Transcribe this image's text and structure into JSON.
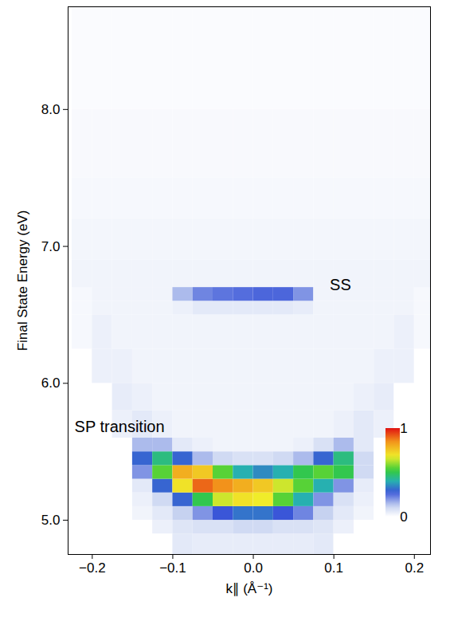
{
  "chart_data": {
    "type": "heatmap",
    "x_label": "k∥ (Å⁻¹)",
    "y_label": "Final State Energy (eV)",
    "xlim": [
      -0.23,
      0.22
    ],
    "ylim": [
      4.75,
      8.75
    ],
    "xticks": [
      {
        "value": -0.2,
        "label": "−0.2"
      },
      {
        "value": -0.1,
        "label": "−0.1"
      },
      {
        "value": 0,
        "label": "0.0"
      },
      {
        "value": 0.1,
        "label": "0.1"
      },
      {
        "value": 0.2,
        "label": "0.2"
      }
    ],
    "yticks": [
      {
        "value": 5,
        "label": "5.0"
      },
      {
        "value": 6,
        "label": "6.0"
      },
      {
        "value": 7,
        "label": "7.0"
      },
      {
        "value": 8,
        "label": "8.0"
      }
    ],
    "x_edges": [
      -0.225,
      -0.2,
      -0.175,
      -0.15,
      -0.125,
      -0.1,
      -0.075,
      -0.05,
      -0.025,
      0,
      0.025,
      0.05,
      0.075,
      0.1,
      0.125,
      0.15,
      0.175,
      0.2,
      0.225
    ],
    "y_edges": [
      4.75,
      4.9,
      5.0,
      5.1,
      5.2,
      5.3,
      5.4,
      5.5,
      5.6,
      5.8,
      6.0,
      6.25,
      6.5,
      6.6,
      6.7,
      6.9,
      7.2,
      7.5,
      8.0,
      8.75
    ],
    "values": [
      [
        0,
        0,
        0,
        0,
        0,
        0.06,
        0.05,
        0.05,
        0.05,
        0.05,
        0.05,
        0.05,
        0.06,
        0,
        0,
        0,
        0,
        0
      ],
      [
        0,
        0,
        0,
        0,
        0.04,
        0.07,
        0.08,
        0.08,
        0.1,
        0.1,
        0.08,
        0.08,
        0.07,
        0.04,
        0,
        0,
        0,
        0
      ],
      [
        0,
        0,
        0,
        0.03,
        0.06,
        0.12,
        0.2,
        0.28,
        0.32,
        0.32,
        0.28,
        0.22,
        0.12,
        0.06,
        0.03,
        0,
        0,
        0
      ],
      [
        0,
        0,
        0,
        0.04,
        0.1,
        0.3,
        0.5,
        0.65,
        0.7,
        0.68,
        0.55,
        0.4,
        0.2,
        0.08,
        0.04,
        0,
        0,
        0
      ],
      [
        0,
        0,
        0,
        0.06,
        0.3,
        0.7,
        0.9,
        0.85,
        0.8,
        0.75,
        0.65,
        0.55,
        0.4,
        0.2,
        0.05,
        0,
        0,
        0
      ],
      [
        0,
        0,
        0,
        0.2,
        0.55,
        0.8,
        0.75,
        0.55,
        0.4,
        0.35,
        0.4,
        0.5,
        0.55,
        0.5,
        0.1,
        0,
        0,
        0
      ],
      [
        0,
        0,
        0,
        0.3,
        0.45,
        0.3,
        0.15,
        0.1,
        0.08,
        0.08,
        0.1,
        0.15,
        0.3,
        0.45,
        0.1,
        0,
        0,
        0
      ],
      [
        0,
        0,
        0,
        0.15,
        0.15,
        0.06,
        0.04,
        0.03,
        0.03,
        0.03,
        0.03,
        0.04,
        0.08,
        0.15,
        0.06,
        0,
        0,
        0
      ],
      [
        0,
        0,
        0.04,
        0.06,
        0.04,
        0.03,
        0.03,
        0.03,
        0.03,
        0.03,
        0.03,
        0.03,
        0.03,
        0.04,
        0.06,
        0.04,
        0,
        0
      ],
      [
        0,
        0,
        0.05,
        0.04,
        0.03,
        0.03,
        0.03,
        0.03,
        0.03,
        0.03,
        0.03,
        0.03,
        0.03,
        0.03,
        0.04,
        0.05,
        0,
        0
      ],
      [
        0,
        0.04,
        0.04,
        0.03,
        0.03,
        0.03,
        0.03,
        0.03,
        0.03,
        0.03,
        0.03,
        0.03,
        0.03,
        0.03,
        0.03,
        0.04,
        0.04,
        0
      ],
      [
        0.02,
        0.04,
        0.03,
        0.03,
        0.03,
        0.03,
        0.03,
        0.03,
        0.03,
        0.03,
        0.03,
        0.03,
        0.03,
        0.03,
        0.03,
        0.03,
        0.04,
        0.02
      ],
      [
        0.02,
        0.03,
        0.03,
        0.03,
        0.03,
        0.04,
        0.06,
        0.06,
        0.06,
        0.06,
        0.06,
        0.05,
        0.03,
        0.03,
        0.03,
        0.03,
        0.03,
        0.02
      ],
      [
        0.02,
        0.03,
        0.03,
        0.03,
        0.03,
        0.15,
        0.22,
        0.24,
        0.25,
        0.26,
        0.26,
        0.2,
        0.03,
        0.03,
        0.03,
        0.03,
        0.03,
        0.02
      ],
      [
        0.03,
        0.03,
        0.03,
        0.03,
        0.03,
        0.03,
        0.03,
        0.03,
        0.03,
        0.03,
        0.03,
        0.03,
        0.03,
        0.03,
        0.03,
        0.03,
        0.03,
        0.03
      ],
      [
        0.025,
        0.025,
        0.025,
        0.025,
        0.025,
        0.025,
        0.025,
        0.025,
        0.025,
        0.025,
        0.025,
        0.025,
        0.025,
        0.025,
        0.025,
        0.025,
        0.025,
        0.025
      ],
      [
        0.02,
        0.02,
        0.02,
        0.02,
        0.02,
        0.02,
        0.02,
        0.02,
        0.02,
        0.02,
        0.02,
        0.02,
        0.02,
        0.02,
        0.02,
        0.02,
        0.02,
        0.02
      ],
      [
        0.015,
        0.015,
        0.015,
        0.015,
        0.015,
        0.015,
        0.015,
        0.015,
        0.015,
        0.015,
        0.015,
        0.015,
        0.015,
        0.015,
        0.015,
        0.015,
        0.015,
        0.015
      ],
      [
        0.01,
        0.01,
        0.01,
        0.01,
        0.01,
        0.01,
        0.01,
        0.01,
        0.01,
        0.01,
        0.01,
        0.01,
        0.01,
        0.01,
        0.01,
        0.01,
        0.01,
        0.01
      ]
    ],
    "colorbar": {
      "range": [
        0,
        1
      ],
      "ticks": [
        0,
        1
      ]
    },
    "annotations": [
      {
        "text": "SS",
        "x": 0.095,
        "y": 6.72
      },
      {
        "text": "SP transition",
        "x": -0.222,
        "y": 5.68
      }
    ]
  }
}
